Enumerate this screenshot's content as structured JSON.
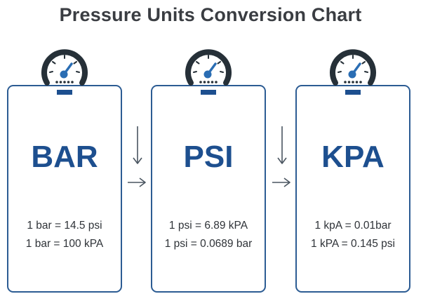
{
  "title": "Pressure Units Conversion Chart",
  "cards": [
    {
      "unit": "BAR",
      "lines": [
        "1 bar = 14.5 psi",
        "1 bar = 100 kPA"
      ]
    },
    {
      "unit": "PSI",
      "lines": [
        "1 psi = 6.89 kPA",
        "1 psi = 0.0689 bar"
      ]
    },
    {
      "unit": "KPA",
      "lines": [
        "1 kpA = 0.01bar",
        "1 kPA = 0.145 psi"
      ]
    }
  ],
  "icons": {
    "gauge": "pressure-gauge-icon",
    "down": "arrow-down-icon",
    "right": "arrow-right-icon"
  },
  "colors": {
    "accent": "#1d4f8f",
    "border": "#2c5c93",
    "gauge_dark": "#263038",
    "text": "#2f3338"
  }
}
